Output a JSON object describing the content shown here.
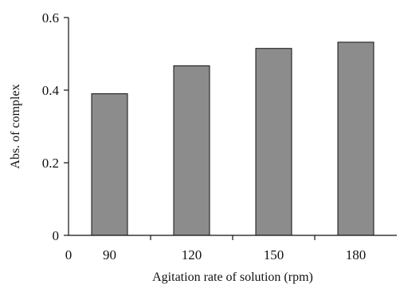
{
  "chart_data": {
    "type": "bar",
    "title": "",
    "xlabel": "Agitation rate of solution (rpm)",
    "ylabel": "Abs. of complex",
    "categories": [
      "90",
      "120",
      "150",
      "180"
    ],
    "x_origin_label": "0",
    "values": [
      0.39,
      0.467,
      0.515,
      0.532
    ],
    "ylim": [
      0,
      0.6
    ],
    "yticks": [
      0,
      0.2,
      0.4,
      0.6
    ],
    "ytick_labels": [
      "0",
      "0.2",
      "0.4",
      "0.6"
    ],
    "grid": false,
    "legend": "none",
    "bar_color": "#8c8c8c",
    "bar_edge_color": "#111111"
  }
}
